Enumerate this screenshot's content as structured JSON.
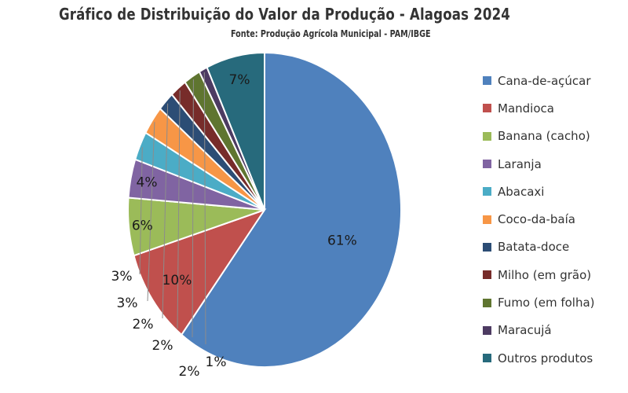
{
  "chart_data": {
    "type": "pie",
    "title": "Gráfico de Distribuição do Valor da Produção - Alagoas 2024",
    "subtitle": "Fonte: Produção Agrícola Municipal - PAM/IBGE",
    "legend_position": "right",
    "slices": [
      {
        "name": "Cana-de-açúcar",
        "value": 61,
        "label": "61%",
        "color": "#4f81bd"
      },
      {
        "name": "Mandioca",
        "value": 10,
        "label": "10%",
        "color": "#c0504d"
      },
      {
        "name": "Banana (cacho)",
        "value": 6,
        "label": "6%",
        "color": "#9bbb59"
      },
      {
        "name": "Laranja",
        "value": 4,
        "label": "4%",
        "color": "#8064a2"
      },
      {
        "name": "Abacaxi",
        "value": 3,
        "label": "3%",
        "color": "#4bacc6"
      },
      {
        "name": "Coco-da-baía",
        "value": 3,
        "label": "3%",
        "color": "#f79646"
      },
      {
        "name": "Batata-doce",
        "value": 2,
        "label": "2%",
        "color": "#2c4d75"
      },
      {
        "name": "Milho (em grão)",
        "value": 2,
        "label": "2%",
        "color": "#772c2a"
      },
      {
        "name": "Fumo (em folha)",
        "value": 2,
        "label": "2%",
        "color": "#5f7530"
      },
      {
        "name": "Maracujá",
        "value": 1,
        "label": "1%",
        "color": "#4d3b62"
      },
      {
        "name": "Outros produtos",
        "value": 7,
        "label": "7%",
        "color": "#276a7c"
      }
    ]
  }
}
